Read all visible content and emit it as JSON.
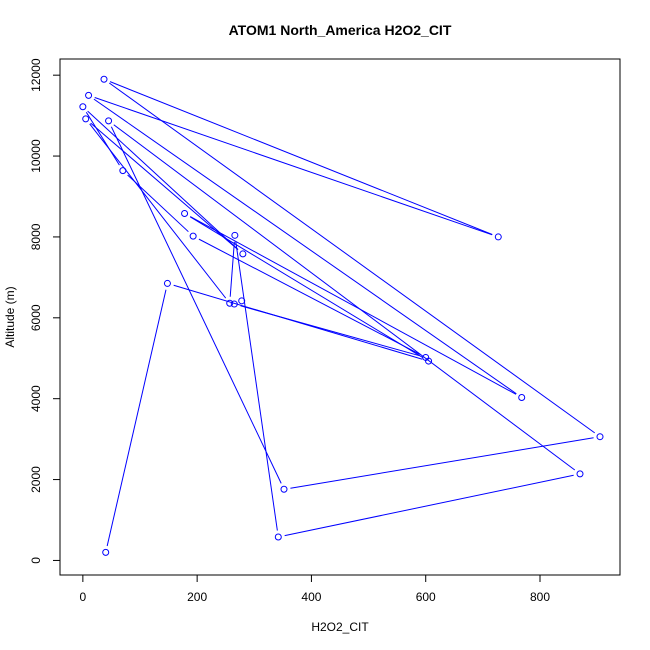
{
  "chart_data": {
    "type": "line",
    "title": "ATOM1 North_America H2O2_CIT",
    "xlabel": "H2O2_CIT",
    "ylabel": "Altitude (m)",
    "xlim": [
      -40,
      940
    ],
    "ylim": [
      -360,
      12400
    ],
    "x_ticks": [
      0,
      200,
      400,
      600,
      800
    ],
    "y_ticks": [
      0,
      2000,
      4000,
      6000,
      8000,
      10000,
      12000
    ],
    "series_color": "#0000ff",
    "marker": "open-circle",
    "points": [
      {
        "x": 40,
        "y": 200
      },
      {
        "x": 148,
        "y": 6850
      },
      {
        "x": 605,
        "y": 4930
      },
      {
        "x": 178,
        "y": 8580
      },
      {
        "x": 768,
        "y": 4030
      },
      {
        "x": 10,
        "y": 11500
      },
      {
        "x": 727,
        "y": 8000
      },
      {
        "x": 37,
        "y": 11900
      },
      {
        "x": 905,
        "y": 3060
      },
      {
        "x": 352,
        "y": 1760
      },
      {
        "x": 45,
        "y": 10870
      },
      {
        "x": 870,
        "y": 2140
      },
      {
        "x": 342,
        "y": 580
      },
      {
        "x": 266,
        "y": 8040
      },
      {
        "x": 257,
        "y": 6360
      },
      {
        "x": 5,
        "y": 10920
      },
      {
        "x": 280,
        "y": 7580
      },
      {
        "x": 0,
        "y": 11220
      },
      {
        "x": 70,
        "y": 9640
      },
      {
        "x": 193,
        "y": 8020
      },
      {
        "x": 600,
        "y": 5020
      },
      {
        "x": 265,
        "y": 6340
      },
      {
        "x": 278,
        "y": 6420
      }
    ]
  }
}
